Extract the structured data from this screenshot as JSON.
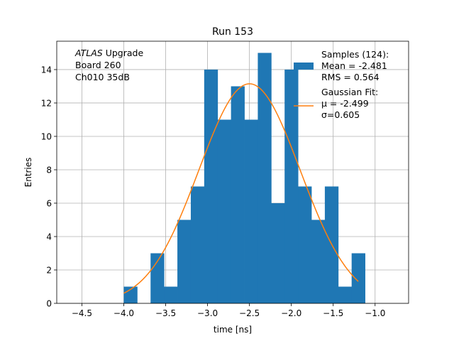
{
  "chart_data": {
    "type": "bar",
    "title": "Run 153",
    "xlabel": "time [ns]",
    "ylabel": "Entries",
    "xlim": [
      -4.8,
      -0.6
    ],
    "ylim": [
      0,
      15.7
    ],
    "xticks": [
      -4.5,
      -4.0,
      -3.5,
      -3.0,
      -2.5,
      -2.0,
      -1.5,
      -1.0
    ],
    "xtick_labels": [
      "−4.5",
      "−4.0",
      "−3.5",
      "−3.0",
      "−2.5",
      "−2.0",
      "−1.5",
      "−1.0"
    ],
    "yticks": [
      0,
      2,
      4,
      6,
      8,
      10,
      12,
      14
    ],
    "ytick_labels": [
      "0",
      "2",
      "4",
      "6",
      "8",
      "10",
      "12",
      "14"
    ],
    "grid": true,
    "bin_edges": [
      -4.0,
      -3.84,
      -3.68,
      -3.52,
      -3.36,
      -3.2,
      -3.04,
      -2.88,
      -2.72,
      -2.56,
      -2.4,
      -2.24,
      -2.08,
      -1.92,
      -1.76,
      -1.6,
      -1.44,
      -1.28,
      -1.12
    ],
    "counts": [
      1,
      0,
      3,
      1,
      5,
      7,
      14,
      11,
      13,
      11,
      15,
      6,
      14,
      7,
      5,
      7,
      1,
      3
    ],
    "bar_color": "#1f77b4",
    "fit": {
      "name": "Gaussian Fit",
      "mu": -2.499,
      "sigma": 0.605,
      "amplitude": 13.15,
      "x_range": [
        -4.0,
        -1.2
      ],
      "color": "#ff7f0e"
    },
    "legend": {
      "placement": "upper right",
      "entries": [
        {
          "kind": "patch",
          "color": "#1f77b4",
          "lines": [
            "Samples (124):",
            " Mean = -2.481",
            " RMS = 0.564"
          ]
        },
        {
          "kind": "line",
          "color": "#ff7f0e",
          "lines": [
            "Gaussian Fit:",
            " μ = -2.499",
            " σ=0.605"
          ]
        }
      ]
    },
    "annotation": {
      "lines": [
        "ATLAS Upgrade",
        " Board 260",
        " Ch010 35dB"
      ],
      "italic_word": "ATLAS"
    }
  }
}
